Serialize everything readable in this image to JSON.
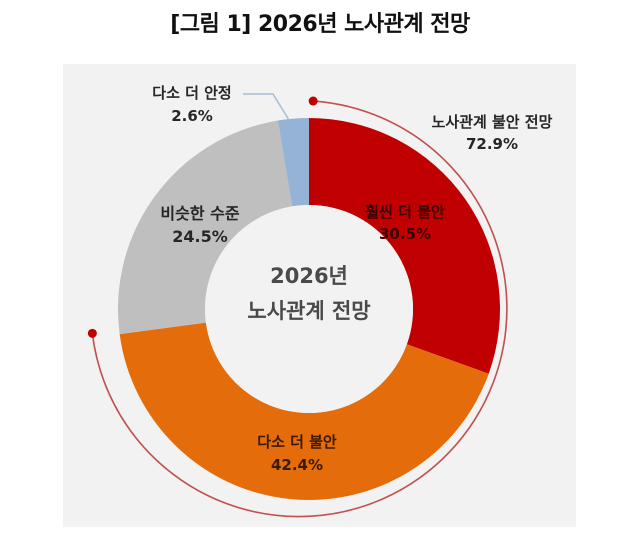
{
  "title": "[그림 1] 2026년 노사관계 전망",
  "center_label": {
    "line1": "2026년",
    "line2": "노사관계 전망"
  },
  "callout": {
    "label": "노사관계 불안 전망",
    "value": "72.9%"
  },
  "segments": [
    {
      "label": "훨씬 더 불안",
      "value_text": "30.5%",
      "color": "#c00000"
    },
    {
      "label": "다소 더 불안",
      "value_text": "42.4%",
      "color": "#e46c0a"
    },
    {
      "label": "비슷한 수준",
      "value_text": "24.5%",
      "color": "#bfbfbf"
    },
    {
      "label": "다소 더 안정",
      "value_text": "2.6%",
      "color": "#95b3d7"
    }
  ],
  "colors": {
    "panel_bg": "#f2f2f2",
    "arc": "#c0504d",
    "arc_dot": "#c00000",
    "leader": "#a6bcd6"
  },
  "chart_data": {
    "type": "pie",
    "subtype": "donut",
    "title": "[그림 1] 2026년 노사관계 전망",
    "center_text": "2026년 노사관계 전망",
    "categories": [
      "훨씬 더 불안",
      "다소 더 불안",
      "비슷한 수준",
      "다소 더 안정"
    ],
    "values": [
      30.5,
      42.4,
      24.5,
      2.6
    ],
    "unit": "%",
    "annotations": [
      {
        "text": "노사관계 불안 전망 72.9%",
        "covers": [
          "훨씬 더 불안",
          "다소 더 불안"
        ]
      }
    ],
    "legend": "none (data labels on slices)"
  }
}
